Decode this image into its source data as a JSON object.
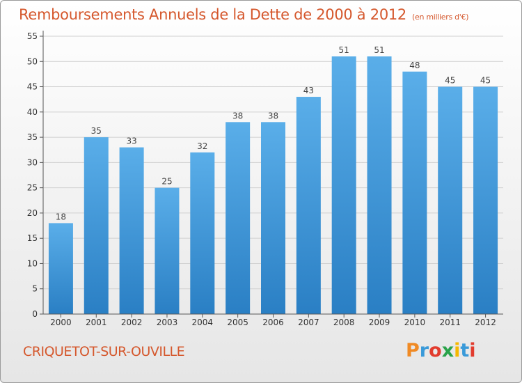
{
  "header": {
    "title": "Remboursements Annuels de la Dette de 2000 à 2012",
    "unit": "(en milliers d'€)"
  },
  "footer": {
    "commune": "CRIQUETOT-SUR-OUVILLE",
    "logo_text": "Proxiti"
  },
  "colors": {
    "bar_top": "#5aaee9",
    "bar_bottom": "#2a7fc4",
    "title": "#d5582d",
    "grid": "#d0d0d0",
    "logo": [
      "#f08a24",
      "#3a9ad9",
      "#e23c2e",
      "#2aa34a",
      "#f5b800",
      "#3a9ad9",
      "#e23c2e"
    ]
  },
  "chart_data": {
    "type": "bar",
    "categories": [
      "2000",
      "2001",
      "2002",
      "2003",
      "2004",
      "2005",
      "2006",
      "2007",
      "2008",
      "2009",
      "2010",
      "2011",
      "2012"
    ],
    "values": [
      18,
      35,
      33,
      25,
      32,
      38,
      38,
      43,
      51,
      51,
      48,
      45,
      45
    ],
    "title": "Remboursements Annuels de la Dette de 2000 à 2012",
    "ylim": [
      0,
      55
    ],
    "yticks": [
      0,
      5,
      10,
      15,
      20,
      25,
      30,
      35,
      40,
      45,
      50,
      55
    ],
    "grid": true,
    "data_labels": true
  }
}
